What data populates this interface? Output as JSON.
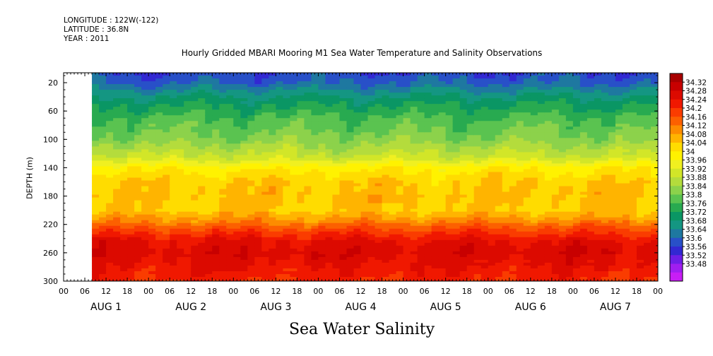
{
  "header": {
    "longitude": "LONGITUDE : 122W(-122)",
    "latitude": "LATITUDE : 36.8N",
    "year": "YEAR : 2011"
  },
  "plot_title": "Hourly Gridded MBARI Mooring M1 Sea Water Temperature and Salinity Observations",
  "main_title": "Sea Water Salinity",
  "chart_data": {
    "type": "heatmap",
    "title": "Hourly Gridded MBARI Mooring M1 Sea Water Temperature and Salinity Observations",
    "subtitle": "Sea Water Salinity",
    "ylabel": "DEPTH (m)",
    "xlabel": "",
    "y_ticks": [
      20,
      60,
      100,
      140,
      180,
      220,
      260,
      300
    ],
    "y_inverted": true,
    "ylim": [
      300,
      6
    ],
    "x_hours": [
      "00",
      "06",
      "12",
      "18",
      "00",
      "06",
      "12",
      "18",
      "00",
      "06",
      "12",
      "18",
      "00",
      "06",
      "12",
      "18",
      "00",
      "06",
      "12",
      "18",
      "00",
      "06",
      "12",
      "18",
      "00",
      "06",
      "12",
      "18",
      "00"
    ],
    "x_days": [
      "AUG  1",
      "AUG  2",
      "AUG  3",
      "AUG  4",
      "AUG  5",
      "AUG  6",
      "AUG  7"
    ],
    "colorbar": {
      "labels": [
        "34.32",
        "34.28",
        "34.24",
        "34.2",
        "34.16",
        "34.12",
        "34.08",
        "34.04",
        "34",
        "33.96",
        "33.92",
        "33.88",
        "33.84",
        "33.8",
        "33.76",
        "33.72",
        "33.68",
        "33.64",
        "33.6",
        "33.56",
        "33.52",
        "33.48"
      ],
      "colors": [
        "#a80000",
        "#c80000",
        "#dc0a00",
        "#f01800",
        "#fa3c00",
        "#fc6000",
        "#fd8c00",
        "#ffb400",
        "#ffdc00",
        "#fff200",
        "#f0f020",
        "#d2e628",
        "#b4dc3c",
        "#8cd24b",
        "#5ac350",
        "#28aa50",
        "#0a9664",
        "#149682",
        "#1e78a0",
        "#2850c8",
        "#3228d2",
        "#6e1ee6",
        "#a01ef0",
        "#c81ef5"
      ]
    },
    "profile": {
      "depths": [
        6,
        20,
        35,
        50,
        70,
        100,
        125,
        140,
        160,
        180,
        200,
        215,
        230,
        245,
        260,
        280,
        300
      ],
      "salinity": [
        33.6,
        33.63,
        33.69,
        33.74,
        33.79,
        33.84,
        33.91,
        34.0,
        34.05,
        34.06,
        34.05,
        34.11,
        34.19,
        34.25,
        34.27,
        34.24,
        34.21
      ]
    },
    "data_start_hour": 8,
    "data_end_hour": 168,
    "grid": false,
    "colorbar_position": "right"
  }
}
